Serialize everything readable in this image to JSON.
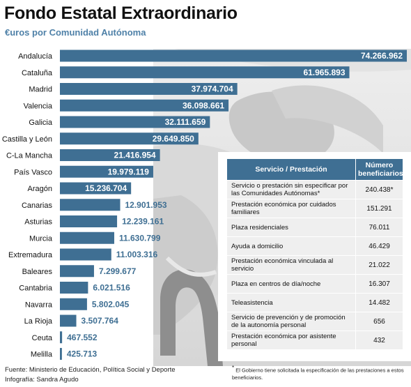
{
  "title": "Fondo Estatal Extraordinario",
  "subtitle": "€uros por Comunidad Autónoma",
  "chart_data": {
    "type": "bar",
    "orientation": "horizontal",
    "categories": [
      "Andalucía",
      "Cataluña",
      "Madrid",
      "Valencia",
      "Galicia",
      "Castilla y León",
      "C-La Mancha",
      "País Vasco",
      "Aragón",
      "Canarias",
      "Asturias",
      "Murcia",
      "Extremadura",
      "Baleares",
      "Cantabria",
      "Navarra",
      "La Rioja",
      "Ceuta",
      "Melilla"
    ],
    "values": [
      74266962,
      61965893,
      37974704,
      36098661,
      32111659,
      29649850,
      21416954,
      19979119,
      15236704,
      12901953,
      12239161,
      11630799,
      11003316,
      7299677,
      6021516,
      5802045,
      3507764,
      467552,
      425713
    ],
    "value_labels": [
      "74.266.962",
      "61.965.893",
      "37.974.704",
      "36.098.661",
      "32.111.659",
      "29.649.850",
      "21.416.954",
      "19.979.119",
      "15.236.704",
      "12.901.953",
      "12.239.161",
      "11.630.799",
      "11.003.316",
      "7.299.677",
      "6.021.516",
      "5.802.045",
      "3.507.764",
      "467.552",
      "425.713"
    ],
    "xlim": [
      0,
      74266962
    ],
    "bar_color": "#3f6f93",
    "grid": false,
    "legend": "none"
  },
  "table": {
    "headers": [
      "Servicio / Prestación",
      "Número beneficiarios"
    ],
    "rows": [
      {
        "service": "Servicio o prestación sin especificar por las Comunidades Autónomas*",
        "count": "240.438*"
      },
      {
        "service": "Prestación económica por cuidados familiares",
        "count": "151.291"
      },
      {
        "service": "Plaza residenciales",
        "count": "76.011"
      },
      {
        "service": "Ayuda a domicilio",
        "count": "46.429"
      },
      {
        "service": "Prestación económica vinculada al servicio",
        "count": "21.022"
      },
      {
        "service": "Plaza en centros de día/noche",
        "count": "16.307"
      },
      {
        "service": "Teleasistencia",
        "count": "14.482"
      },
      {
        "service": "Servicio de prevención y de promoción de la autonomía personal",
        "count": "656"
      },
      {
        "service": "Prestación económica por asistente personal",
        "count": "432"
      }
    ]
  },
  "footer": {
    "source": "Fuente:  Ministerio de Educación, Política Social y Deporte",
    "credit": "Infografía:  Sandra Agudo",
    "footnote_mark": "*",
    "footnote": " El Gobierno tiene solicitada la especificación de las prestaciones a estos beneficiarios."
  },
  "colors": {
    "bar": "#3f6f93",
    "table_header": "#3f6f93",
    "subtitle": "#4f81a8",
    "table_cell": "#efefef"
  }
}
